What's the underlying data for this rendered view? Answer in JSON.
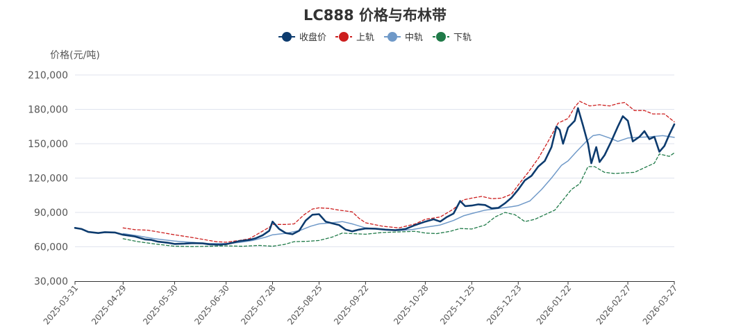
{
  "chart_data": {
    "type": "line",
    "title": "LC888 价格与布林带",
    "ylabel": "价格(元/吨)",
    "xlabel": "",
    "ylim": [
      30000,
      210000
    ],
    "yticks": [
      30000,
      60000,
      90000,
      120000,
      150000,
      180000,
      210000
    ],
    "ytick_labels": [
      "30,000",
      "60,000",
      "90,000",
      "120,000",
      "150,000",
      "180,000",
      "210,000"
    ],
    "x_start": "2025-03-31",
    "x_end": "2026-03-27",
    "xticks": [
      "2025-03-31",
      "2025-04-29",
      "2025-05-30",
      "2025-06-30",
      "2025-07-28",
      "2025-08-25",
      "2025-09-22",
      "2025-10-28",
      "2025-11-25",
      "2025-12-23",
      "2026-01-22",
      "2026-02-27",
      "2026-03-27"
    ],
    "grid": true,
    "legend_position": "top-center",
    "series": [
      {
        "name": "收盘价",
        "color": "#0d3b6e",
        "style": "solid-thick",
        "points": [
          [
            "2025-03-31",
            76500
          ],
          [
            "2025-04-04",
            75500
          ],
          [
            "2025-04-08",
            73000
          ],
          [
            "2025-04-14",
            72000
          ],
          [
            "2025-04-18",
            72800
          ],
          [
            "2025-04-24",
            72500
          ],
          [
            "2025-04-29",
            70500
          ],
          [
            "2025-05-06",
            69000
          ],
          [
            "2025-05-12",
            66500
          ],
          [
            "2025-05-16",
            66000
          ],
          [
            "2025-05-20",
            64500
          ],
          [
            "2025-05-26",
            63500
          ],
          [
            "2025-05-30",
            62500
          ],
          [
            "2025-06-05",
            62800
          ],
          [
            "2025-06-10",
            63200
          ],
          [
            "2025-06-16",
            63000
          ],
          [
            "2025-06-20",
            62200
          ],
          [
            "2025-06-26",
            61800
          ],
          [
            "2025-06-30",
            62300
          ],
          [
            "2025-07-04",
            63500
          ],
          [
            "2025-07-08",
            65000
          ],
          [
            "2025-07-14",
            66000
          ],
          [
            "2025-07-18",
            67500
          ],
          [
            "2025-07-22",
            70000
          ],
          [
            "2025-07-26",
            74000
          ],
          [
            "2025-07-28",
            82000
          ],
          [
            "2025-08-01",
            75500
          ],
          [
            "2025-08-05",
            72000
          ],
          [
            "2025-08-09",
            71000
          ],
          [
            "2025-08-13",
            74000
          ],
          [
            "2025-08-17",
            83000
          ],
          [
            "2025-08-21",
            88000
          ],
          [
            "2025-08-25",
            88500
          ],
          [
            "2025-08-29",
            82000
          ],
          [
            "2025-09-02",
            80500
          ],
          [
            "2025-09-06",
            79000
          ],
          [
            "2025-09-10",
            75000
          ],
          [
            "2025-09-14",
            73500
          ],
          [
            "2025-09-18",
            75000
          ],
          [
            "2025-09-22",
            76000
          ],
          [
            "2025-09-28",
            75800
          ],
          [
            "2025-10-04",
            75000
          ],
          [
            "2025-10-10",
            74500
          ],
          [
            "2025-10-16",
            75500
          ],
          [
            "2025-10-22",
            79000
          ],
          [
            "2025-10-28",
            82000
          ],
          [
            "2025-11-02",
            84000
          ],
          [
            "2025-11-06",
            82000
          ],
          [
            "2025-11-10",
            86000
          ],
          [
            "2025-11-14",
            89000
          ],
          [
            "2025-11-18",
            100000
          ],
          [
            "2025-11-21",
            95500
          ],
          [
            "2025-11-25",
            96000
          ],
          [
            "2025-11-29",
            97000
          ],
          [
            "2025-12-03",
            96500
          ],
          [
            "2025-12-07",
            93500
          ],
          [
            "2025-12-11",
            94000
          ],
          [
            "2025-12-15",
            98000
          ],
          [
            "2025-12-19",
            103000
          ],
          [
            "2025-12-23",
            110000
          ],
          [
            "2025-12-27",
            118000
          ],
          [
            "2025-12-31",
            122000
          ],
          [
            "2026-01-04",
            130000
          ],
          [
            "2026-01-08",
            135000
          ],
          [
            "2026-01-12",
            147000
          ],
          [
            "2026-01-15",
            165000
          ],
          [
            "2026-01-17",
            162000
          ],
          [
            "2026-01-19",
            150000
          ],
          [
            "2026-01-22",
            164000
          ],
          [
            "2026-01-26",
            170000
          ],
          [
            "2026-01-28",
            181000
          ],
          [
            "2026-01-31",
            166000
          ],
          [
            "2026-02-03",
            150000
          ],
          [
            "2026-02-05",
            133000
          ],
          [
            "2026-02-08",
            147000
          ],
          [
            "2026-02-10",
            134000
          ],
          [
            "2026-02-13",
            140000
          ],
          [
            "2026-02-17",
            152000
          ],
          [
            "2026-02-21",
            165000
          ],
          [
            "2026-02-24",
            174000
          ],
          [
            "2026-02-27",
            170000
          ],
          [
            "2026-03-02",
            152000
          ],
          [
            "2026-03-06",
            156000
          ],
          [
            "2026-03-09",
            161000
          ],
          [
            "2026-03-12",
            154000
          ],
          [
            "2026-03-15",
            156000
          ],
          [
            "2026-03-18",
            143000
          ],
          [
            "2026-03-21",
            148000
          ],
          [
            "2026-03-24",
            158000
          ],
          [
            "2026-03-27",
            167000
          ]
        ]
      },
      {
        "name": "上轨",
        "color": "#cc1e1e",
        "style": "dashed",
        "points": [
          [
            "2025-04-29",
            76500
          ],
          [
            "2025-05-06",
            75000
          ],
          [
            "2025-05-14",
            74500
          ],
          [
            "2025-05-22",
            72500
          ],
          [
            "2025-05-30",
            70500
          ],
          [
            "2025-06-08",
            68500
          ],
          [
            "2025-06-16",
            66500
          ],
          [
            "2025-06-24",
            64500
          ],
          [
            "2025-06-30",
            64000
          ],
          [
            "2025-07-08",
            65500
          ],
          [
            "2025-07-14",
            67000
          ],
          [
            "2025-07-20",
            72000
          ],
          [
            "2025-07-26",
            77000
          ],
          [
            "2025-07-28",
            79500
          ],
          [
            "2025-08-05",
            79500
          ],
          [
            "2025-08-10",
            80000
          ],
          [
            "2025-08-16",
            88000
          ],
          [
            "2025-08-21",
            93000
          ],
          [
            "2025-08-25",
            94000
          ],
          [
            "2025-08-31",
            93500
          ],
          [
            "2025-09-06",
            92000
          ],
          [
            "2025-09-14",
            90500
          ],
          [
            "2025-09-18",
            85000
          ],
          [
            "2025-09-22",
            81000
          ],
          [
            "2025-10-02",
            78000
          ],
          [
            "2025-10-12",
            76500
          ],
          [
            "2025-10-22",
            80000
          ],
          [
            "2025-10-28",
            84000
          ],
          [
            "2025-11-06",
            86000
          ],
          [
            "2025-11-14",
            93000
          ],
          [
            "2025-11-20",
            101000
          ],
          [
            "2025-11-25",
            102500
          ],
          [
            "2025-12-01",
            104000
          ],
          [
            "2025-12-07",
            102000
          ],
          [
            "2025-12-13",
            102500
          ],
          [
            "2025-12-19",
            106000
          ],
          [
            "2025-12-23",
            114000
          ],
          [
            "2025-12-29",
            125000
          ],
          [
            "2026-01-04",
            137000
          ],
          [
            "2026-01-10",
            152000
          ],
          [
            "2026-01-16",
            168000
          ],
          [
            "2026-01-22",
            172000
          ],
          [
            "2026-01-26",
            182000
          ],
          [
            "2026-01-29",
            187000
          ],
          [
            "2026-02-04",
            183000
          ],
          [
            "2026-02-10",
            184000
          ],
          [
            "2026-02-16",
            183000
          ],
          [
            "2026-02-21",
            185000
          ],
          [
            "2026-02-25",
            186000
          ],
          [
            "2026-03-03",
            179000
          ],
          [
            "2026-03-09",
            179000
          ],
          [
            "2026-03-14",
            176000
          ],
          [
            "2026-03-21",
            176000
          ],
          [
            "2026-03-27",
            169000
          ]
        ]
      },
      {
        "name": "中轨",
        "color": "#6f99c8",
        "style": "solid-thin",
        "points": [
          [
            "2025-04-29",
            71500
          ],
          [
            "2025-05-08",
            69500
          ],
          [
            "2025-05-18",
            67000
          ],
          [
            "2025-05-30",
            65000
          ],
          [
            "2025-06-10",
            63800
          ],
          [
            "2025-06-20",
            62800
          ],
          [
            "2025-06-30",
            62800
          ],
          [
            "2025-07-08",
            63800
          ],
          [
            "2025-07-16",
            65500
          ],
          [
            "2025-07-24",
            68500
          ],
          [
            "2025-07-28",
            70500
          ],
          [
            "2025-08-06",
            72000
          ],
          [
            "2025-08-14",
            74500
          ],
          [
            "2025-08-20",
            78000
          ],
          [
            "2025-08-25",
            80000
          ],
          [
            "2025-09-02",
            81000
          ],
          [
            "2025-09-08",
            82000
          ],
          [
            "2025-09-14",
            80000
          ],
          [
            "2025-09-22",
            76500
          ],
          [
            "2025-10-02",
            75000
          ],
          [
            "2025-10-12",
            74200
          ],
          [
            "2025-10-20",
            75000
          ],
          [
            "2025-10-28",
            77000
          ],
          [
            "2025-11-06",
            79000
          ],
          [
            "2025-11-14",
            83000
          ],
          [
            "2025-11-20",
            87000
          ],
          [
            "2025-11-25",
            89000
          ],
          [
            "2025-12-03",
            92000
          ],
          [
            "2025-12-11",
            93500
          ],
          [
            "2025-12-19",
            95000
          ],
          [
            "2025-12-23",
            96000
          ],
          [
            "2025-12-30",
            100000
          ],
          [
            "2026-01-06",
            110000
          ],
          [
            "2026-01-12",
            120000
          ],
          [
            "2026-01-18",
            131000
          ],
          [
            "2026-01-22",
            135000
          ],
          [
            "2026-01-27",
            143000
          ],
          [
            "2026-02-02",
            152000
          ],
          [
            "2026-02-06",
            157000
          ],
          [
            "2026-02-10",
            158000
          ],
          [
            "2026-02-16",
            155000
          ],
          [
            "2026-02-21",
            152000
          ],
          [
            "2026-02-27",
            155000
          ],
          [
            "2026-03-05",
            155500
          ],
          [
            "2026-03-12",
            156000
          ],
          [
            "2026-03-20",
            157000
          ],
          [
            "2026-03-27",
            155500
          ]
        ]
      },
      {
        "name": "下轨",
        "color": "#1f7a48",
        "style": "dashed",
        "points": [
          [
            "2025-04-29",
            67000
          ],
          [
            "2025-05-08",
            64500
          ],
          [
            "2025-05-18",
            62500
          ],
          [
            "2025-05-30",
            60500
          ],
          [
            "2025-06-10",
            60200
          ],
          [
            "2025-06-20",
            60500
          ],
          [
            "2025-06-30",
            60800
          ],
          [
            "2025-07-10",
            60500
          ],
          [
            "2025-07-20",
            61200
          ],
          [
            "2025-07-28",
            60500
          ],
          [
            "2025-08-04",
            62000
          ],
          [
            "2025-08-10",
            64500
          ],
          [
            "2025-08-18",
            64800
          ],
          [
            "2025-08-25",
            65500
          ],
          [
            "2025-09-02",
            68500
          ],
          [
            "2025-09-08",
            72000
          ],
          [
            "2025-09-14",
            71500
          ],
          [
            "2025-09-22",
            71000
          ],
          [
            "2025-10-02",
            72500
          ],
          [
            "2025-10-12",
            73000
          ],
          [
            "2025-10-22",
            73500
          ],
          [
            "2025-10-28",
            72000
          ],
          [
            "2025-11-04",
            71500
          ],
          [
            "2025-11-12",
            73500
          ],
          [
            "2025-11-18",
            76000
          ],
          [
            "2025-11-25",
            75500
          ],
          [
            "2025-12-03",
            79000
          ],
          [
            "2025-12-09",
            86000
          ],
          [
            "2025-12-15",
            90000
          ],
          [
            "2025-12-21",
            88000
          ],
          [
            "2025-12-27",
            82000
          ],
          [
            "2026-01-02",
            84000
          ],
          [
            "2026-01-08",
            88000
          ],
          [
            "2026-01-14",
            92000
          ],
          [
            "2026-01-19",
            101000
          ],
          [
            "2026-01-24",
            110000
          ],
          [
            "2026-01-29",
            115000
          ],
          [
            "2026-02-03",
            130000
          ],
          [
            "2026-02-07",
            130000
          ],
          [
            "2026-02-13",
            125000
          ],
          [
            "2026-02-19",
            124000
          ],
          [
            "2026-02-25",
            124500
          ],
          [
            "2026-03-03",
            125000
          ],
          [
            "2026-03-09",
            129000
          ],
          [
            "2026-03-15",
            133000
          ],
          [
            "2026-03-18",
            141000
          ],
          [
            "2026-03-24",
            139000
          ],
          [
            "2026-03-27",
            142000
          ]
        ]
      }
    ]
  }
}
